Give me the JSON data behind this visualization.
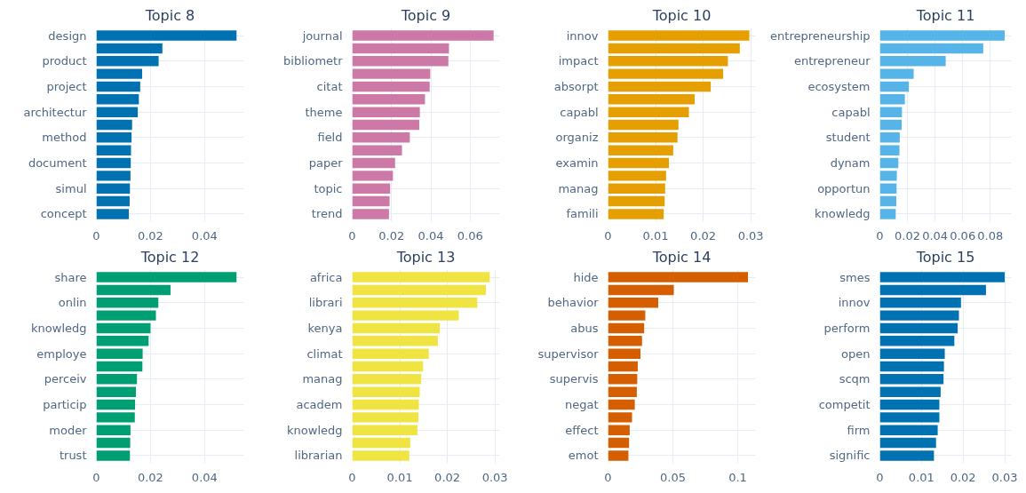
{
  "chart_data": [
    {
      "type": "bar",
      "orientation": "horizontal",
      "title": "Topic 8",
      "color": "#0072b2",
      "grid": true,
      "xlim": [
        0,
        0.0545
      ],
      "xticks": [
        0,
        0.02,
        0.04
      ],
      "categories": [
        "design",
        null,
        "product",
        null,
        "project",
        null,
        "architectur",
        null,
        "method",
        null,
        "document",
        null,
        "simul",
        null,
        "concept"
      ],
      "values": [
        0.0518,
        0.0244,
        0.023,
        0.0169,
        0.0162,
        0.0157,
        0.0153,
        0.0132,
        0.013,
        0.0128,
        0.0127,
        0.0126,
        0.0124,
        0.0123,
        0.012
      ]
    },
    {
      "type": "bar",
      "orientation": "horizontal",
      "title": "Topic 9",
      "color": "#cc79a7",
      "grid": true,
      "xlim": [
        0,
        0.075
      ],
      "xticks": [
        0,
        0.02,
        0.04,
        0.06
      ],
      "categories": [
        "journal",
        null,
        "bibliometr",
        null,
        "citat",
        null,
        "theme",
        null,
        "field",
        null,
        "paper",
        null,
        "topic",
        null,
        "trend"
      ],
      "values": [
        0.0719,
        0.0492,
        0.0489,
        0.0397,
        0.0394,
        0.037,
        0.0344,
        0.0341,
        0.0293,
        0.0253,
        0.0218,
        0.0207,
        0.0193,
        0.019,
        0.0187
      ]
    },
    {
      "type": "bar",
      "orientation": "horizontal",
      "title": "Topic 10",
      "color": "#e69f00",
      "grid": true,
      "xlim": [
        0,
        0.031
      ],
      "xticks": [
        0,
        0.01,
        0.02,
        0.03
      ],
      "categories": [
        "innov",
        null,
        "impact",
        null,
        "absorpt",
        null,
        "capabl",
        null,
        "organiz",
        null,
        "examin",
        null,
        "manag",
        null,
        "famili"
      ],
      "values": [
        0.0297,
        0.0277,
        0.0252,
        0.0242,
        0.0216,
        0.0182,
        0.017,
        0.0148,
        0.0146,
        0.0137,
        0.0128,
        0.0122,
        0.012,
        0.0119,
        0.0117
      ]
    },
    {
      "type": "bar",
      "orientation": "horizontal",
      "title": "Topic 11",
      "color": "#56b4e9",
      "grid": true,
      "xlim": [
        0,
        0.0953
      ],
      "xticks": [
        0,
        0.02,
        0.04,
        0.06,
        0.08
      ],
      "categories": [
        "entrepreneurship",
        null,
        "entrepreneur",
        null,
        "ecosystem",
        null,
        "capabl",
        null,
        "student",
        null,
        "dynam",
        null,
        "opportun",
        null,
        "knowledg"
      ],
      "values": [
        0.0905,
        0.0749,
        0.0477,
        0.0245,
        0.021,
        0.0181,
        0.016,
        0.0158,
        0.0144,
        0.0142,
        0.0134,
        0.0123,
        0.0121,
        0.0119,
        0.0115
      ]
    },
    {
      "type": "bar",
      "orientation": "horizontal",
      "title": "Topic 12",
      "color": "#009e73",
      "grid": true,
      "xlim": [
        0,
        0.0545
      ],
      "xticks": [
        0,
        0.02,
        0.04
      ],
      "categories": [
        "share",
        null,
        "onlin",
        null,
        "knowledg",
        null,
        "employe",
        null,
        "perceiv",
        null,
        "particip",
        null,
        "moder",
        null,
        "trust"
      ],
      "values": [
        0.0518,
        0.0274,
        0.0229,
        0.022,
        0.02,
        0.0193,
        0.0171,
        0.017,
        0.015,
        0.0146,
        0.0143,
        0.0142,
        0.0126,
        0.0125,
        0.0124
      ]
    },
    {
      "type": "bar",
      "orientation": "horizontal",
      "title": "Topic 13",
      "color": "#f0e442",
      "grid": true,
      "xlim": [
        0,
        0.031
      ],
      "xticks": [
        0,
        0.01,
        0.02,
        0.03
      ],
      "categories": [
        "africa",
        null,
        "librari",
        null,
        "kenya",
        null,
        "climat",
        null,
        "manag",
        null,
        "academ",
        null,
        "knowledg",
        null,
        "librarian"
      ],
      "values": [
        0.0289,
        0.0281,
        0.0263,
        0.0224,
        0.0184,
        0.018,
        0.0161,
        0.0149,
        0.0145,
        0.0142,
        0.014,
        0.0139,
        0.0137,
        0.0122,
        0.012
      ]
    },
    {
      "type": "bar",
      "orientation": "horizontal",
      "title": "Topic 14",
      "color": "#d55e00",
      "grid": true,
      "xlim": [
        0,
        0.1137
      ],
      "xticks": [
        0,
        0.05,
        0.1
      ],
      "categories": [
        "hide",
        null,
        "behavior",
        null,
        "abus",
        null,
        "supervisor",
        null,
        "supervis",
        null,
        "negat",
        null,
        "effect",
        null,
        "emot"
      ],
      "values": [
        0.1079,
        0.0507,
        0.0387,
        0.0287,
        0.0278,
        0.0262,
        0.025,
        0.0229,
        0.0225,
        0.0222,
        0.0206,
        0.0185,
        0.0167,
        0.0162,
        0.0157
      ]
    },
    {
      "type": "bar",
      "orientation": "horizontal",
      "title": "Topic 15",
      "color": "#0072b2",
      "grid": true,
      "xlim": [
        0,
        0.0316
      ],
      "xticks": [
        0,
        0.01,
        0.02,
        0.03
      ],
      "categories": [
        "smes",
        null,
        "innov",
        null,
        "perform",
        null,
        "open",
        null,
        "scqm",
        null,
        "competit",
        null,
        "firm",
        null,
        "signific"
      ],
      "values": [
        0.03,
        0.0255,
        0.0195,
        0.019,
        0.0187,
        0.0179,
        0.0156,
        0.0154,
        0.0153,
        0.0146,
        0.0143,
        0.0143,
        0.0139,
        0.0135,
        0.013
      ]
    }
  ]
}
